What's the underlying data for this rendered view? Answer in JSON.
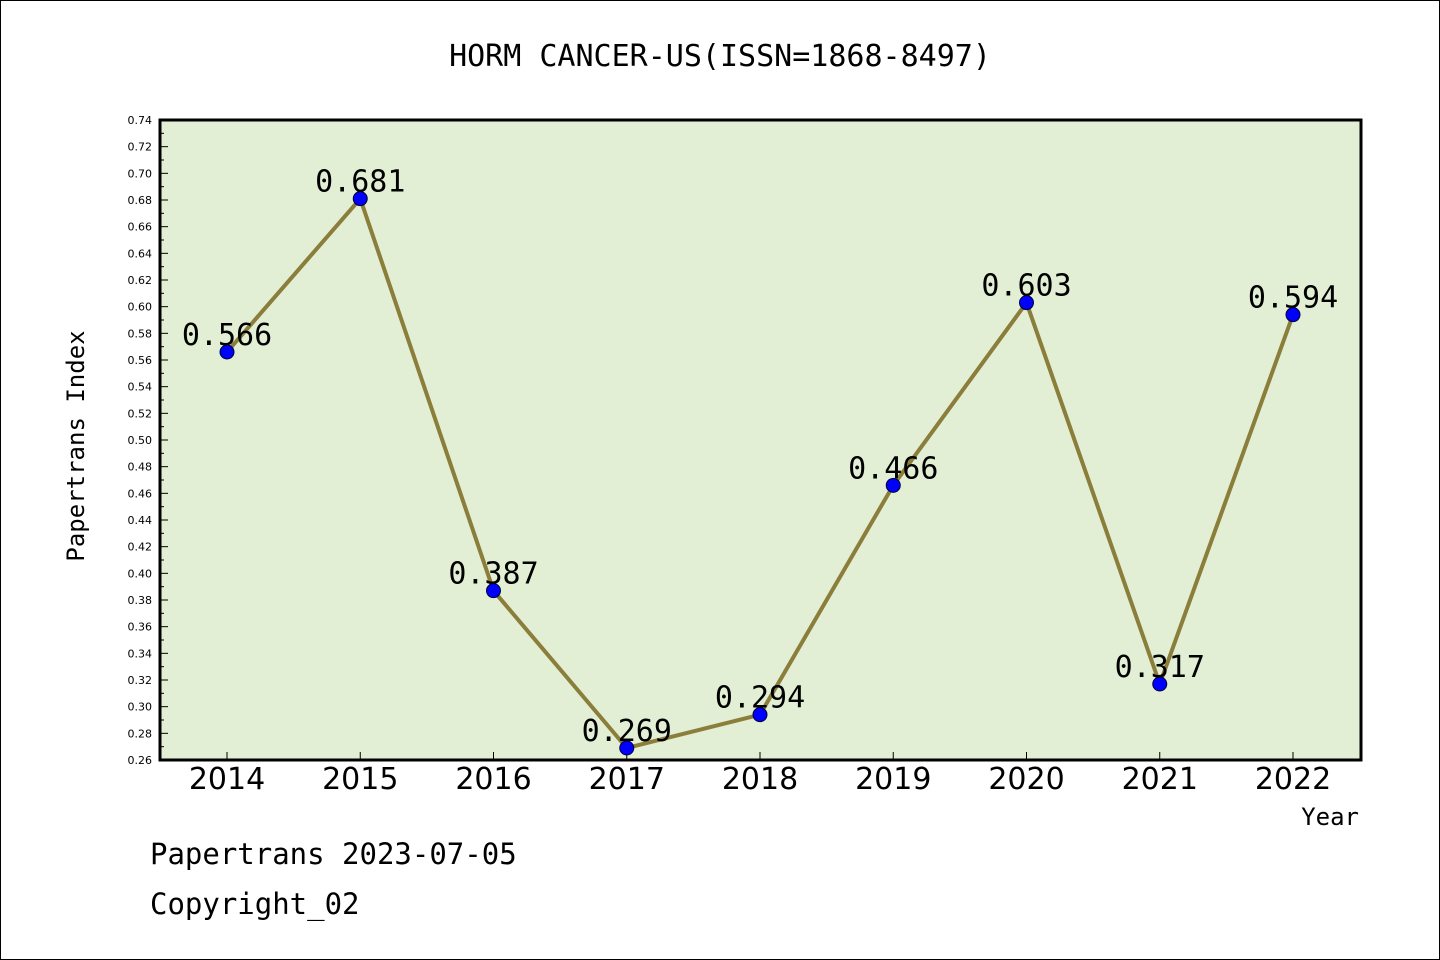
{
  "chart_data": {
    "type": "line",
    "title": "HORM CANCER-US(ISSN=1868-8497)",
    "xlabel": "Year",
    "ylabel": "Papertrans Index",
    "categories": [
      "2014",
      "2015",
      "2016",
      "2017",
      "2018",
      "2019",
      "2020",
      "2021",
      "2022"
    ],
    "values": [
      0.566,
      0.681,
      0.387,
      0.269,
      0.294,
      0.466,
      0.603,
      0.317,
      0.594
    ],
    "data_labels": [
      "0.566",
      "0.681",
      "0.387",
      "0.269",
      "0.294",
      "0.466",
      "0.603",
      "0.317",
      "0.594"
    ],
    "ylim": [
      0.26,
      0.74
    ],
    "yticks": [
      "0.26",
      "0.28",
      "0.30",
      "0.32",
      "0.34",
      "0.36",
      "0.38",
      "0.40",
      "0.42",
      "0.44",
      "0.46",
      "0.48",
      "0.50",
      "0.52",
      "0.54",
      "0.56",
      "0.58",
      "0.60",
      "0.62",
      "0.64",
      "0.66",
      "0.68",
      "0.70",
      "0.72",
      "0.74"
    ],
    "grid": false,
    "colors": {
      "plot_background": "#e2efd5",
      "line": "#8b7d3a",
      "marker": "#0000ff"
    }
  },
  "footer": {
    "date_line": "Papertrans 2023-07-05",
    "copyright": "Copyright_02"
  }
}
